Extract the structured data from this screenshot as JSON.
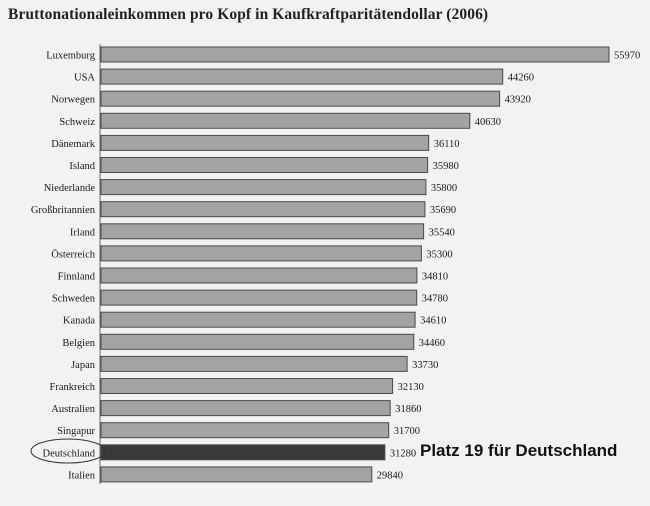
{
  "chart_data": {
    "type": "bar",
    "orientation": "horizontal",
    "title": "Bruttonationaleinkommen pro Kopf in Kaufkraftparitätendollar (2006)",
    "categories": [
      "Luxemburg",
      "USA",
      "Norwegen",
      "Schweiz",
      "Dänemark",
      "Island",
      "Niederlande",
      "Großbritannien",
      "Irland",
      "Österreich",
      "Finnland",
      "Schweden",
      "Kanada",
      "Belgien",
      "Japan",
      "Frankreich",
      "Australien",
      "Singapur",
      "Deutschland",
      "Italien"
    ],
    "values": [
      55970,
      44260,
      43920,
      40630,
      36110,
      35980,
      35800,
      35690,
      35540,
      35300,
      34810,
      34780,
      34610,
      34460,
      33730,
      32130,
      31860,
      31700,
      31280,
      29840
    ],
    "highlighted_category": "Deutschland",
    "annotation": "Platz 19 für Deutschland",
    "xlim": [
      0,
      56000
    ],
    "grid": false,
    "colors": {
      "bar": "#a3a3a3",
      "bar_highlight": "#3a3a3a",
      "bar_border": "#4a4a4a"
    }
  }
}
